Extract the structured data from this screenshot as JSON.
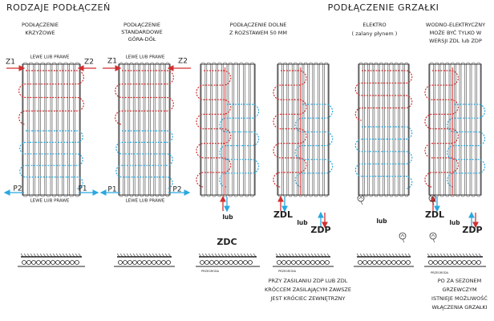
{
  "headings": {
    "connections": "RODZAJE PODŁĄCZEŃ",
    "heater": "PODŁĄCZENIE GRZAŁKI"
  },
  "columns": [
    {
      "title": [
        "PODŁĄCZENIE",
        "KRZYŻOWE"
      ],
      "top_side": "LEWE LUB PRAWE",
      "bottom_side": "LEWE LUB PRAWE",
      "inlet_left": "Z1",
      "inlet_right": "Z2",
      "outlet_left": "P2",
      "outlet_right": "P1"
    },
    {
      "title": [
        "PODŁĄCZENIE",
        "STANDARDOWE",
        "GÓRA-DÓŁ"
      ],
      "top_side": "LEWE LUB PRAWE",
      "bottom_side": "LEWE LUB PRAWE",
      "inlet_left": "Z1",
      "inlet_right": "Z2",
      "outlet_left": "P1",
      "outlet_right": "P2"
    },
    {
      "title": [
        "PODŁĄCZENIE DOLNE",
        "Z ROZSTAWEM 50 MM"
      ],
      "or": "lub",
      "code": "ZDC",
      "partition": "PRZEGRODA"
    },
    {
      "codes": [
        "ZDL",
        "lub",
        "ZDP"
      ],
      "partition": "PRZEGRODA",
      "note": [
        "PRZY ZASILANIU ZDP LUB ZDL",
        "KRÓCCEM ZASILAJĄCYM ZAWSZE",
        "JEST KRÓCIEC ZEWNĘTRZNY"
      ]
    },
    {
      "title": [
        "ELEKTRO",
        "( zalany płynem )"
      ],
      "or": "lub"
    },
    {
      "title": [
        "WODNO-ELEKTRYCZNY",
        "MOŻE BYĆ TYLKO W",
        "WERSJI ZDL lub ZDP"
      ],
      "codes": [
        "ZDL",
        "lub",
        "ZDP"
      ],
      "partition": "PRZEGRODA",
      "note": [
        "PO ZA SEZONEM",
        "GRZEWCZYM",
        "ISTNIEJE MOŻLIWOŚĆ",
        "WŁĄCZENIA GRZAŁKI"
      ]
    }
  ]
}
